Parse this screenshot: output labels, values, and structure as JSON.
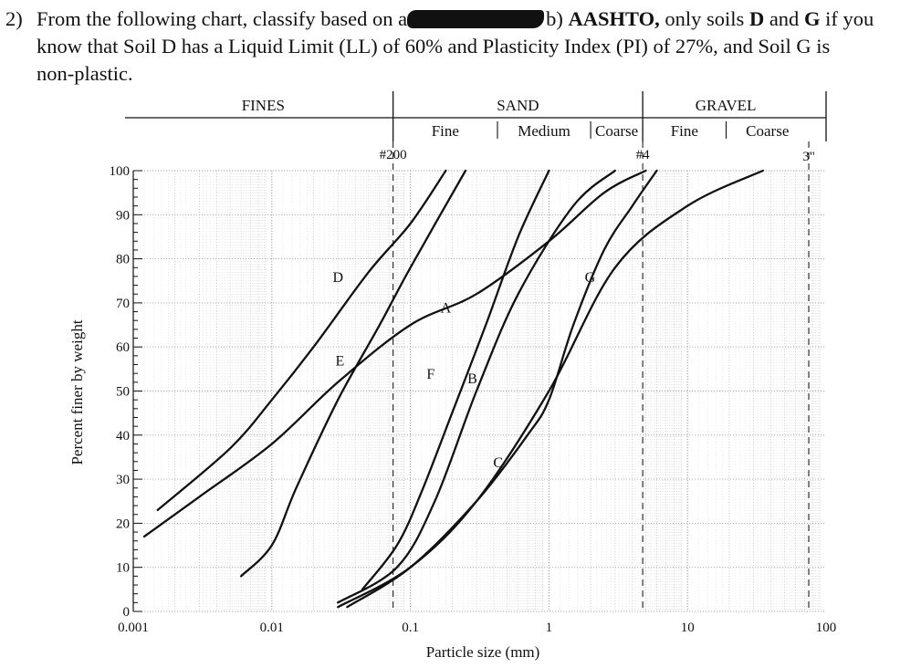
{
  "question": {
    "number": "2)",
    "line1_pre": "From the following chart, classify based on a",
    "line1_b": "b)",
    "line1_aashto": "AASHTO,",
    "line1_mid": "only soils",
    "line1_d": "D",
    "line1_and": "and",
    "line1_g": "G",
    "line1_post": "if you",
    "line2": "know that Soil D has a Liquid Limit (LL) of 60% and Plasticity Index (PI) of 27%, and Soil G is",
    "line3": "non-plastic."
  },
  "chart_data": {
    "type": "line",
    "x_scale": "log",
    "xlim": [
      0.001,
      100
    ],
    "ylim": [
      0,
      100
    ],
    "xlabel": "Particle size (mm)",
    "ylabel": "Percent finer by weight",
    "x_ticks": [
      {
        "value": 0.001,
        "label": "0.001"
      },
      {
        "value": 0.01,
        "label": "0.01"
      },
      {
        "value": 0.1,
        "label": "0.1"
      },
      {
        "value": 1,
        "label": "1"
      },
      {
        "value": 10,
        "label": "10"
      },
      {
        "value": 100,
        "label": "100"
      }
    ],
    "y_ticks": [
      0,
      10,
      20,
      30,
      40,
      50,
      60,
      70,
      80,
      90,
      100
    ],
    "grid": true,
    "sieve_markers": [
      {
        "label": "#200",
        "value": 0.075
      },
      {
        "label": "#4",
        "value": 4.75
      },
      {
        "label": "3\"",
        "value": 75
      }
    ],
    "classes": [
      {
        "name": "FINES",
        "from": 0.001,
        "to": 0.075,
        "subdivisions": []
      },
      {
        "name": "SAND",
        "from": 0.075,
        "to": 4.75,
        "subdivisions": [
          {
            "name": "Fine",
            "from": 0.075,
            "to": 0.425
          },
          {
            "name": "Medium",
            "from": 0.425,
            "to": 2.0
          },
          {
            "name": "Coarse",
            "from": 2.0,
            "to": 4.75
          }
        ]
      },
      {
        "name": "GRAVEL",
        "from": 4.75,
        "to": 75,
        "subdivisions": [
          {
            "name": "Fine",
            "from": 4.75,
            "to": 19
          },
          {
            "name": "Coarse",
            "from": 19,
            "to": 75
          }
        ]
      }
    ],
    "series": [
      {
        "name": "A",
        "points": [
          [
            0.0012,
            17
          ],
          [
            0.003,
            26
          ],
          [
            0.01,
            38
          ],
          [
            0.03,
            52
          ],
          [
            0.1,
            65
          ],
          [
            0.3,
            72
          ],
          [
            1,
            84
          ],
          [
            2.5,
            95
          ],
          [
            5,
            100
          ]
        ]
      },
      {
        "name": "B",
        "points": [
          [
            0.045,
            5
          ],
          [
            0.08,
            15
          ],
          [
            0.12,
            27
          ],
          [
            0.2,
            45
          ],
          [
            0.35,
            65
          ],
          [
            0.6,
            85
          ],
          [
            1.0,
            100
          ]
        ]
      },
      {
        "name": "C",
        "points": [
          [
            0.03,
            1
          ],
          [
            0.1,
            10
          ],
          [
            0.3,
            25
          ],
          [
            1,
            50
          ],
          [
            3,
            78
          ],
          [
            10,
            92
          ],
          [
            35,
            100
          ]
        ]
      },
      {
        "name": "D",
        "points": [
          [
            0.0015,
            23
          ],
          [
            0.005,
            37
          ],
          [
            0.01,
            48
          ],
          [
            0.02,
            60
          ],
          [
            0.05,
            77
          ],
          [
            0.1,
            88
          ],
          [
            0.18,
            100
          ]
        ]
      },
      {
        "name": "E",
        "points": [
          [
            0.006,
            8
          ],
          [
            0.01,
            15
          ],
          [
            0.015,
            28
          ],
          [
            0.03,
            48
          ],
          [
            0.06,
            65
          ],
          [
            0.1,
            78
          ],
          [
            0.25,
            100
          ]
        ]
      },
      {
        "name": "F",
        "points": [
          [
            0.03,
            2
          ],
          [
            0.08,
            10
          ],
          [
            0.15,
            25
          ],
          [
            0.3,
            50
          ],
          [
            0.6,
            72
          ],
          [
            1.5,
            92
          ],
          [
            3,
            100
          ]
        ]
      },
      {
        "name": "G",
        "points": [
          [
            0.035,
            1
          ],
          [
            0.1,
            10
          ],
          [
            0.3,
            25
          ],
          [
            0.7,
            40
          ],
          [
            1.0,
            48
          ],
          [
            1.5,
            65
          ],
          [
            2.5,
            82
          ],
          [
            4,
            92
          ],
          [
            6,
            100
          ]
        ]
      }
    ],
    "curve_labels": [
      {
        "text": "D",
        "x": 0.03,
        "y": 76
      },
      {
        "text": "E",
        "x": 0.031,
        "y": 57
      },
      {
        "text": "A",
        "x": 0.18,
        "y": 69
      },
      {
        "text": "F",
        "x": 0.14,
        "y": 54
      },
      {
        "text": "B",
        "x": 0.28,
        "y": 53
      },
      {
        "text": "C",
        "x": 0.43,
        "y": 34
      },
      {
        "text": "G",
        "x": 1.98,
        "y": 76
      }
    ]
  }
}
